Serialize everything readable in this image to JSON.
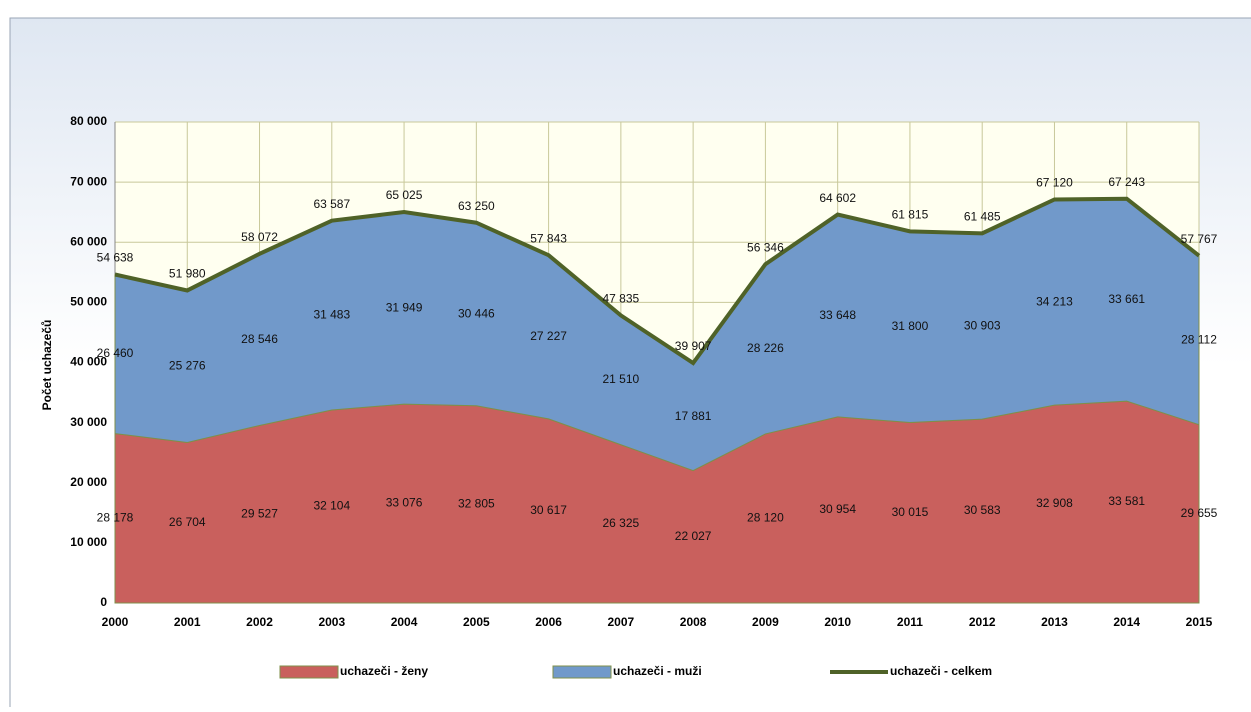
{
  "chart_data": {
    "type": "stacked-area",
    "y_label": "Počet uchazečů",
    "categories": [
      "2000",
      "2001",
      "2002",
      "2003",
      "2004",
      "2005",
      "2006",
      "2007",
      "2008",
      "2009",
      "2010",
      "2011",
      "2012",
      "2013",
      "2014",
      "2015"
    ],
    "series": [
      {
        "name": "uchazeči - ženy",
        "color": "#c9605d",
        "stack": true,
        "values": [
          28178,
          26704,
          29527,
          32104,
          33076,
          32805,
          30617,
          26325,
          22027,
          28120,
          30954,
          30015,
          30583,
          32908,
          33581,
          29655
        ],
        "value_labels": [
          "28 178",
          "26 704",
          "29 527",
          "32 104",
          "33 076",
          "32 805",
          "30 617",
          "26 325",
          "22 027",
          "28 120",
          "30 954",
          "30 015",
          "30 583",
          "32 908",
          "33 581",
          "29 655"
        ]
      },
      {
        "name": "uchazeči - muži",
        "color": "#7199ca",
        "stack": true,
        "values": [
          26460,
          25276,
          28546,
          31483,
          31949,
          30446,
          27227,
          21510,
          17881,
          28226,
          33648,
          31800,
          30903,
          34213,
          33661,
          28112
        ],
        "value_labels": [
          "26 460",
          "25 276",
          "28 546",
          "31 483",
          "31 949",
          "30 446",
          "27 227",
          "21 510",
          "17 881",
          "28 226",
          "33 648",
          "31 800",
          "30 903",
          "34 213",
          "33 661",
          "28 112"
        ]
      },
      {
        "name": "uchazeči - celkem",
        "color": "#4f6228",
        "stack": false,
        "values": [
          54638,
          51980,
          58072,
          63587,
          65025,
          63250,
          57843,
          47835,
          39907,
          56346,
          64602,
          61815,
          61485,
          67120,
          67243,
          57767
        ],
        "value_labels": [
          "54 638",
          "51 980",
          "58 072",
          "63 587",
          "65 025",
          "63 250",
          "57 843",
          "47 835",
          "39 907",
          "56 346",
          "64 602",
          "61 815",
          "61 485",
          "67 120",
          "67 243",
          "57 767"
        ]
      }
    ],
    "ylim": [
      0,
      80000
    ],
    "yticks": [
      {
        "value": 0,
        "label": "0"
      },
      {
        "value": 10000,
        "label": "10 000"
      },
      {
        "value": 20000,
        "label": "20 000"
      },
      {
        "value": 30000,
        "label": "30 000"
      },
      {
        "value": 40000,
        "label": "40 000"
      },
      {
        "value": 50000,
        "label": "50 000"
      },
      {
        "value": 60000,
        "label": "60 000"
      },
      {
        "value": 70000,
        "label": "70 000"
      },
      {
        "value": 80000,
        "label": "80 000"
      }
    ],
    "grid": true,
    "legend": "bottom"
  }
}
